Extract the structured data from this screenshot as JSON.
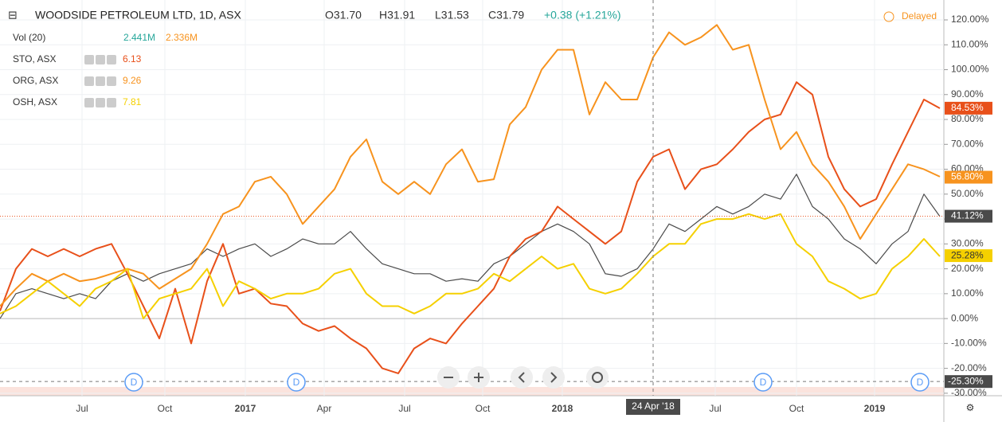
{
  "chart_data": {
    "type": "line",
    "title": "WOODSIDE PETROLEUM LTD, 1D, ASX",
    "ohlc": {
      "open": "O31.70",
      "high": "H31.91",
      "low": "L31.53",
      "close": "C31.79",
      "change": "+0.38 (+1.21%)"
    },
    "volume": {
      "name": "Vol (20)",
      "value1": "2.441M",
      "value2": "2.336M"
    },
    "status": "Delayed",
    "ylim": [
      -31,
      128
    ],
    "yticks": [
      {
        "value": -30,
        "label": "-30.00%"
      },
      {
        "value": -20,
        "label": "-20.00%"
      },
      {
        "value": -10,
        "label": "-10.00%"
      },
      {
        "value": 0,
        "label": "0.00%"
      },
      {
        "value": 10,
        "label": "10.00%"
      },
      {
        "value": 20,
        "label": "20.00%"
      },
      {
        "value": 30,
        "label": "30.00%"
      },
      {
        "value": 40,
        "label": "40.00%"
      },
      {
        "value": 50,
        "label": "50.00%"
      },
      {
        "value": 60,
        "label": "60.00%"
      },
      {
        "value": 70,
        "label": "70.00%"
      },
      {
        "value": 80,
        "label": "80.00%"
      },
      {
        "value": 90,
        "label": "90.00%"
      },
      {
        "value": 100,
        "label": "100.00%"
      },
      {
        "value": 110,
        "label": "110.00%"
      },
      {
        "value": 120,
        "label": "120.00%"
      }
    ],
    "xlim": [
      0,
      59
    ],
    "xticks": [
      {
        "value": 5.15,
        "label": "Jul"
      },
      {
        "value": 10.35,
        "label": "Oct"
      },
      {
        "value": 15.4,
        "label": "2017"
      },
      {
        "value": 20.35,
        "label": "Apr"
      },
      {
        "value": 25.4,
        "label": "Jul"
      },
      {
        "value": 30.3,
        "label": "Oct"
      },
      {
        "value": 35.3,
        "label": "2018"
      },
      {
        "value": 44.9,
        "label": "Jul"
      },
      {
        "value": 50,
        "label": "Oct"
      },
      {
        "value": 54.9,
        "label": "2019"
      }
    ],
    "crosshair": {
      "x": 41,
      "y": -25.3,
      "x_label": "24 Apr '18",
      "y_label": "-25.30%"
    },
    "marker_letter": "D",
    "series": [
      {
        "name": "WOODSIDE PETROLEUM LTD",
        "color": "#4a4a4a",
        "last_label": {
          "value": 41.12,
          "label": "41.12%"
        },
        "values": [
          0,
          10,
          12,
          10,
          8,
          10,
          8,
          15,
          18,
          15,
          18,
          20,
          22,
          28,
          25,
          28,
          30,
          25,
          28,
          32,
          30,
          30,
          35,
          28,
          22,
          20,
          18,
          18,
          15,
          16,
          15,
          22,
          25,
          30,
          35,
          38,
          35,
          30,
          18,
          17,
          20,
          28,
          38,
          35,
          40,
          45,
          42,
          45,
          50,
          48,
          58,
          45,
          40,
          32,
          28,
          22,
          30,
          35,
          50,
          41
        ]
      },
      {
        "name": "STO, ASX",
        "price": "6.13",
        "color": "#e8501a",
        "last_label": {
          "value": 84.53,
          "label": "84.53%"
        },
        "values": [
          3,
          20,
          28,
          25,
          28,
          25,
          28,
          30,
          18,
          5,
          -8,
          12,
          -10,
          15,
          30,
          10,
          12,
          6,
          5,
          -2,
          -5,
          -3,
          -8,
          -12,
          -20,
          -22,
          -12,
          -8,
          -10,
          -2,
          5,
          12,
          25,
          32,
          35,
          45,
          40,
          35,
          30,
          35,
          55,
          65,
          68,
          52,
          60,
          62,
          68,
          75,
          80,
          82,
          95,
          90,
          65,
          52,
          45,
          48,
          62,
          75,
          88,
          84.5
        ]
      },
      {
        "name": "ORG, ASX",
        "price": "9.26",
        "color": "#f7931e",
        "last_label": {
          "value": 56.8,
          "label": "56.80%"
        },
        "values": [
          5,
          12,
          18,
          15,
          18,
          15,
          16,
          18,
          20,
          18,
          12,
          16,
          20,
          30,
          42,
          45,
          55,
          57,
          50,
          38,
          45,
          52,
          65,
          72,
          55,
          50,
          55,
          50,
          62,
          68,
          55,
          56,
          78,
          85,
          100,
          108,
          108,
          82,
          95,
          88,
          88,
          105,
          115,
          110,
          113,
          118,
          108,
          110,
          88,
          68,
          75,
          62,
          55,
          45,
          32,
          42,
          52,
          62,
          60,
          57
        ]
      },
      {
        "name": "OSH, ASX",
        "price": "7.81",
        "color": "#f5d000",
        "last_label": {
          "value": 25.28,
          "label": "25.28%"
        },
        "values": [
          2,
          5,
          10,
          15,
          10,
          5,
          12,
          15,
          20,
          0,
          8,
          10,
          12,
          20,
          5,
          15,
          12,
          8,
          10,
          10,
          12,
          18,
          20,
          10,
          5,
          5,
          2,
          5,
          10,
          10,
          12,
          18,
          15,
          20,
          25,
          20,
          22,
          12,
          10,
          12,
          18,
          25,
          30,
          30,
          38,
          40,
          40,
          42,
          40,
          42,
          30,
          25,
          15,
          12,
          8,
          10,
          20,
          25,
          32,
          25
        ]
      }
    ]
  }
}
